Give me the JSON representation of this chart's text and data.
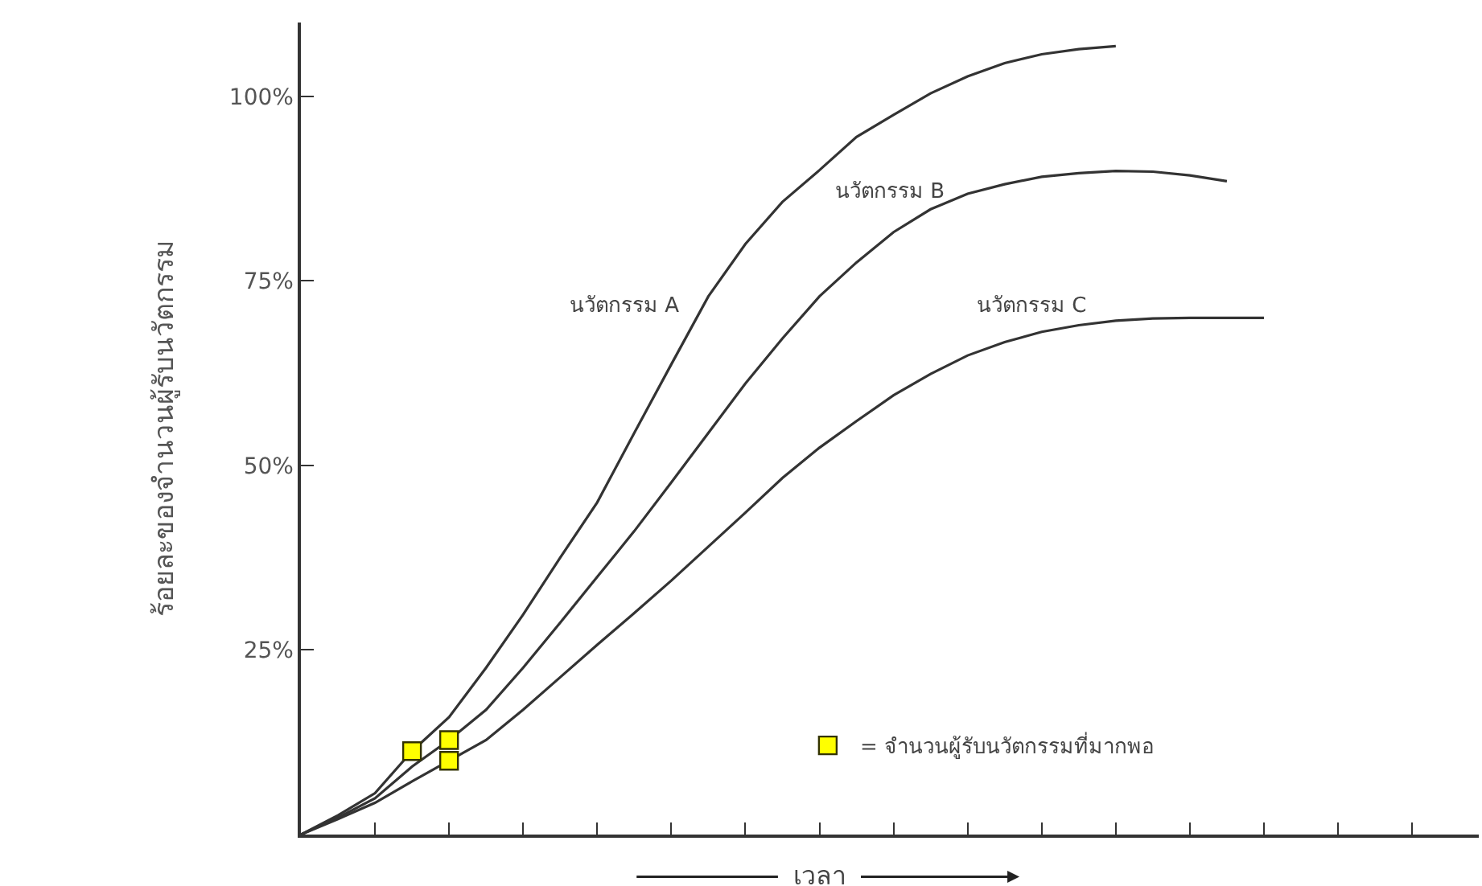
{
  "chart_data": {
    "type": "line",
    "xlabel": "เวลา",
    "ylabel": "ร้อยละของจำนวนผู้รับนวัตกรรม",
    "categories": [
      null,
      null,
      null,
      null,
      null,
      null,
      null,
      null,
      null,
      null,
      null,
      null,
      null,
      null,
      null,
      null,
      null,
      null,
      null,
      null,
      null,
      null,
      null,
      null,
      null,
      null,
      null,
      null,
      null,
      null,
      null,
      null
    ],
    "ylim": [
      0,
      110
    ],
    "yticks": [
      {
        "value": 25,
        "label": "25%"
      },
      {
        "value": 50,
        "label": "50%"
      },
      {
        "value": 75,
        "label": "75%"
      },
      {
        "value": 100,
        "label": "100%"
      }
    ],
    "tick_labels": "y",
    "legend": "bottom right",
    "line_style": "solid",
    "marker": "none",
    "series": [
      {
        "name": "นวัตกรรม A",
        "color": "#333333",
        "values": [
          0,
          2.6,
          5.6,
          11.3,
          15.9,
          22.6,
          29.8,
          37.5,
          45,
          54.4,
          63.7,
          72.9,
          80,
          85.7,
          90,
          94.5,
          97.5,
          100.4,
          102.7,
          104.5,
          105.7,
          106.4,
          106.8,
          null,
          null,
          null,
          null,
          null,
          null,
          null,
          null,
          null
        ]
      },
      {
        "name": "นวัตกรรม B",
        "color": "#333333",
        "values": [
          0,
          2.3,
          4.9,
          9.2,
          12.8,
          16.9,
          22.6,
          28.7,
          34.9,
          41.1,
          47.7,
          54.4,
          61.1,
          67.2,
          72.9,
          77.5,
          81.6,
          84.7,
          86.8,
          88.1,
          89.1,
          89.6,
          89.9,
          89.8,
          89.3,
          88.5,
          null,
          null,
          null,
          null,
          null,
          null
        ]
      },
      {
        "name": "นวัตกรรม C",
        "color": "#333333",
        "values": [
          0,
          2.1,
          4.3,
          7.2,
          10,
          12.8,
          16.9,
          21.3,
          25.7,
          30,
          34.4,
          39,
          43.6,
          48.3,
          52.4,
          56,
          59.5,
          62.4,
          64.9,
          66.7,
          68.1,
          69,
          69.6,
          69.9,
          70,
          70,
          70,
          null,
          null,
          null,
          null,
          null
        ]
      },
      {
        "type": "scatter",
        "name": "= จำนวนผู้รับนวัตกรรมที่มากพอ",
        "color": "#ffff00",
        "marker": "square",
        "values": [
          null,
          null,
          null,
          11.3,
          null,
          null,
          null,
          null,
          null,
          null,
          null,
          null,
          null,
          null,
          null,
          null,
          null,
          null,
          null,
          null,
          null,
          null,
          null,
          null,
          null,
          null,
          null,
          null,
          null,
          null,
          null,
          null
        ]
      },
      {
        "type": "scatter",
        "color": "#ffff00",
        "marker": "square",
        "values": [
          null,
          null,
          null,
          null,
          12.8,
          null,
          null,
          null,
          null,
          null,
          null,
          null,
          null,
          null,
          null,
          null,
          null,
          null,
          null,
          null,
          null,
          null,
          null,
          null,
          null,
          null,
          null,
          null,
          null,
          null,
          null,
          null
        ]
      },
      {
        "type": "scatter",
        "color": "#ffff00",
        "marker": "square",
        "values": [
          null,
          null,
          null,
          null,
          10,
          null,
          null,
          null,
          null,
          null,
          null,
          null,
          null,
          null,
          null,
          null,
          null,
          null,
          null,
          null,
          null,
          null,
          null,
          null,
          null,
          null,
          null,
          null,
          null,
          null,
          null,
          null
        ]
      }
    ]
  }
}
